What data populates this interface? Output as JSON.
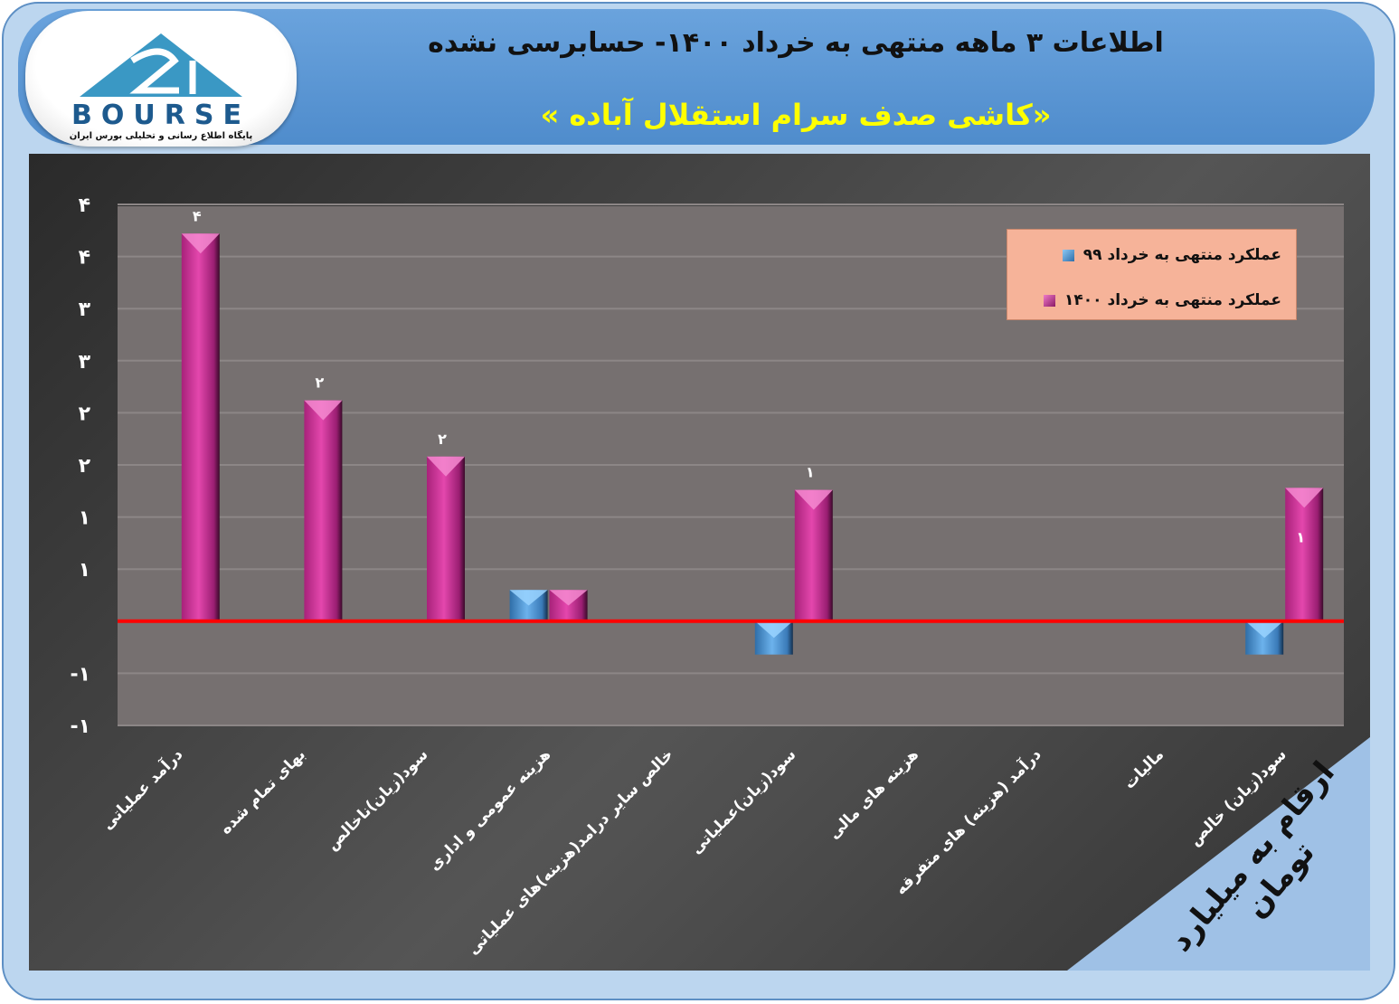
{
  "header": {
    "title": "اطلاعات ۳ ماهه منتهی به خرداد ۱۴۰۰- حسابرسی نشده",
    "subtitle": "«کاشی صدف سرام استقلال آباده »"
  },
  "logo": {
    "word": "BOURSE",
    "tagline": "پایگاه اطلاع رسانی و تحلیلی بورس ایران"
  },
  "unit_note": "ارقام به میلیارد تومان",
  "colors": {
    "series_99": "#4f8fd0",
    "series_1400": "#d0349c",
    "zero_line": "#ff0000",
    "plot_bg": "#767070",
    "legend_bg": "#f6b399"
  },
  "chart_data": {
    "type": "bar",
    "categories": [
      "درآمد عملیاتی",
      "بهای تمام شده",
      "سود(زیان)ناخالص",
      "هزینه عمومی و اداری",
      "خالص سایر درامد(هزینه)های عملیاتی",
      "سود(زیان)عملیاتی",
      "هزینه های مالی",
      "درآمد (هزینه) های متفرقه",
      "مالیات",
      "سود(زیان) خالص"
    ],
    "series": [
      {
        "name": "عملکرد منتهی به خرداد ۹۹",
        "values": [
          0,
          0,
          0,
          0.3,
          0,
          -0.32,
          0,
          0,
          0,
          -0.32
        ],
        "data_labels": [
          "",
          "",
          "",
          "",
          "",
          "",
          "",
          "",
          "",
          ""
        ]
      },
      {
        "name": "عملکرد منتهی به خرداد ۱۴۰۰",
        "values": [
          3.72,
          2.12,
          1.58,
          0.3,
          0,
          1.26,
          0,
          0,
          0,
          1.28
        ],
        "data_labels": [
          "۴",
          "۲",
          "۲",
          "",
          "",
          "۱",
          "",
          "",
          "",
          "۱"
        ]
      }
    ],
    "ylim": [
      -1,
      4
    ],
    "yticks": [
      4,
      3.5,
      3,
      2.5,
      2,
      1.5,
      1,
      0.5,
      0,
      -0.5,
      -1
    ],
    "ytick_labels": [
      "۴",
      "۴",
      "۳",
      "۳",
      "۲",
      "۲",
      "۱",
      "۱",
      "",
      "-۱",
      "-۱"
    ],
    "grid": true,
    "legend_position": "top-right"
  }
}
